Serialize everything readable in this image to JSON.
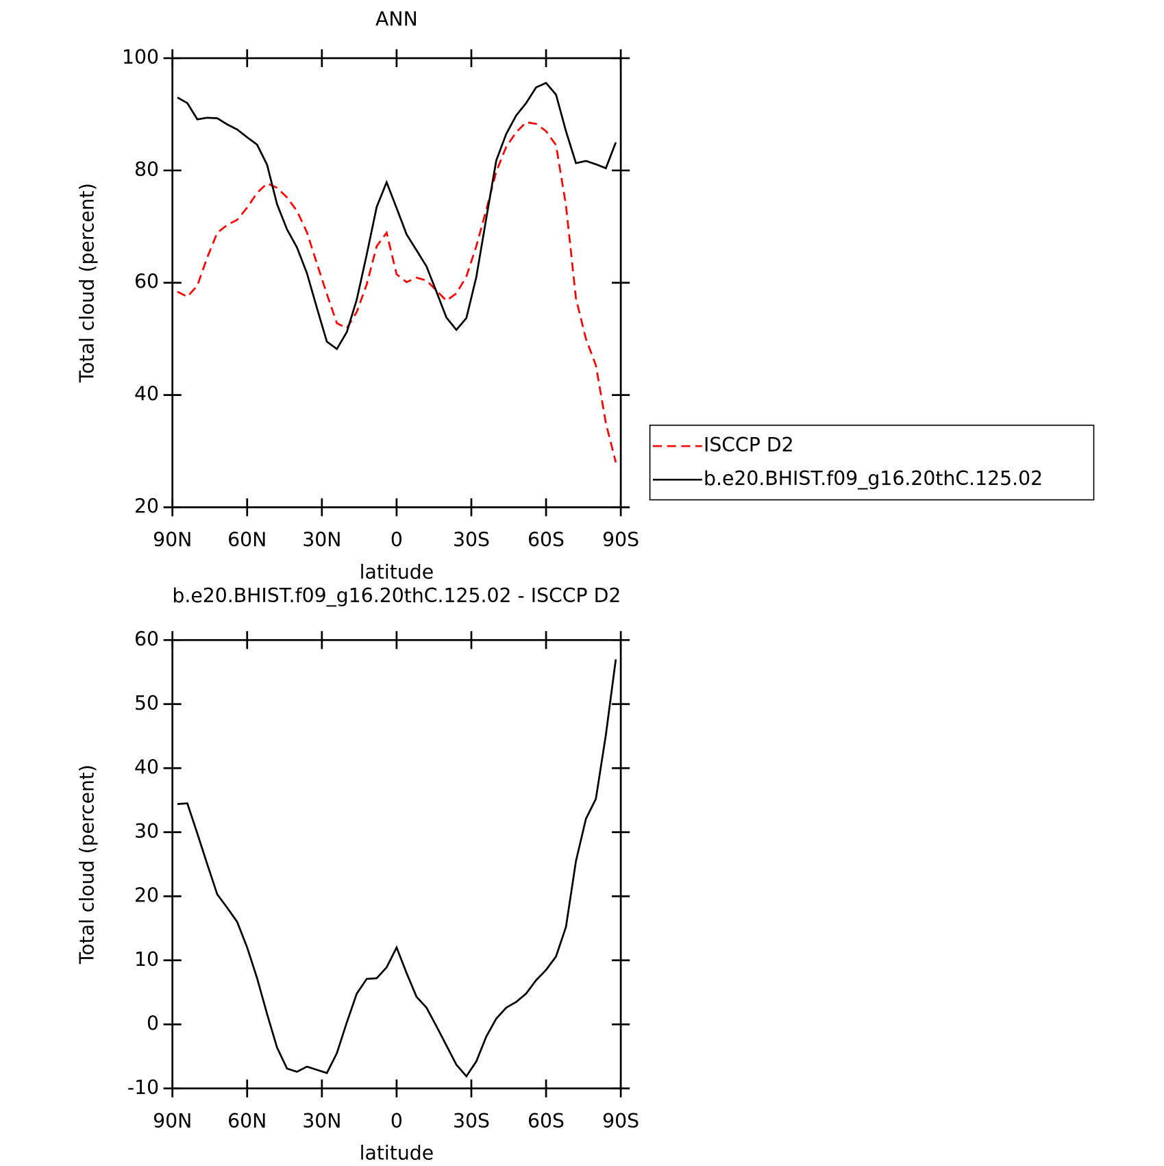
{
  "chart_data": [
    {
      "type": "line",
      "title": "ANN",
      "x_label": "latitude",
      "y_label": "Total cloud (percent)",
      "x": [
        88,
        84,
        80,
        76,
        72,
        68,
        64,
        60,
        56,
        52,
        48,
        44,
        40,
        36,
        32,
        28,
        24,
        20,
        16,
        12,
        8,
        4,
        0,
        -4,
        -8,
        -12,
        -16,
        -20,
        -24,
        -28,
        -32,
        -36,
        -40,
        -44,
        -48,
        -52,
        -56,
        -60,
        -64,
        -68,
        -72,
        -76,
        -80,
        -84,
        -88
      ],
      "xlim": [
        90,
        -90
      ],
      "xticks": [
        {
          "value": 90,
          "label": "90N"
        },
        {
          "value": 60,
          "label": "60N"
        },
        {
          "value": 30,
          "label": "30N"
        },
        0,
        {
          "value": -30,
          "label": "30S"
        },
        {
          "value": -60,
          "label": "60S"
        },
        {
          "value": -90,
          "label": "90S"
        }
      ],
      "ylim": [
        20,
        100
      ],
      "yticks": [
        20,
        40,
        60,
        80,
        100
      ],
      "legend": "right",
      "series": [
        {
          "name": "ISCCP D2",
          "color": "#ff0000",
          "dashed": true,
          "values": [
            58.4,
            57.5,
            59.5,
            64.5,
            68.9,
            70.3,
            71.2,
            73.4,
            76,
            77.7,
            76.9,
            75.2,
            72.8,
            69,
            63.4,
            58,
            52.8,
            51.9,
            54.8,
            59.7,
            66.5,
            68.9,
            61.5,
            60.1,
            60.9,
            60.4,
            58.6,
            56.8,
            58.1,
            61.1,
            66.5,
            73,
            79.8,
            84.2,
            86.8,
            88.6,
            88.3,
            87,
            84.5,
            73.8,
            57.2,
            50,
            45.3,
            35,
            28
          ]
        },
        {
          "name": "b.e20.BHIST.f09_g16.20thC.125.02",
          "color": "#000000",
          "dashed": false,
          "values": [
            93,
            92,
            89.1,
            89.4,
            89.3,
            88.2,
            87.3,
            85.9,
            84.6,
            81,
            74,
            69.5,
            66.3,
            61.7,
            55.5,
            49.5,
            48.2,
            51.2,
            57,
            65,
            73.5,
            77.9,
            73.3,
            68.6,
            65.8,
            62.9,
            58.4,
            53.8,
            51.6,
            53.7,
            61,
            71.5,
            81.8,
            86.5,
            89.8,
            92,
            94.8,
            95.6,
            93.5,
            87,
            81.3,
            81.7,
            81.1,
            80.4,
            85
          ]
        }
      ]
    },
    {
      "type": "line",
      "title": "b.e20.BHIST.f09_g16.20thC.125.02 - ISCCP D2",
      "x_label": "latitude",
      "y_label": "Total cloud (percent)",
      "x": [
        88,
        84,
        80,
        76,
        72,
        68,
        64,
        60,
        56,
        52,
        48,
        44,
        40,
        36,
        32,
        28,
        24,
        20,
        16,
        12,
        8,
        4,
        0,
        -4,
        -8,
        -12,
        -16,
        -20,
        -24,
        -28,
        -32,
        -36,
        -40,
        -44,
        -48,
        -52,
        -56,
        -60,
        -64,
        -68,
        -72,
        -76,
        -80,
        -84,
        -88
      ],
      "xlim": [
        90,
        -90
      ],
      "xticks": [
        {
          "value": 90,
          "label": "90N"
        },
        {
          "value": 60,
          "label": "60N"
        },
        {
          "value": 30,
          "label": "30N"
        },
        0,
        {
          "value": -30,
          "label": "30S"
        },
        {
          "value": -60,
          "label": "60S"
        },
        {
          "value": -90,
          "label": "90S"
        }
      ],
      "ylim": [
        -10,
        60
      ],
      "yticks": [
        -10,
        0,
        10,
        20,
        30,
        40,
        50,
        60
      ],
      "series": [
        {
          "color": "#000000",
          "dashed": false,
          "values": [
            34.4,
            34.5,
            29.8,
            25,
            20.3,
            18.2,
            16,
            12,
            7.2,
            1.6,
            -3.6,
            -6.9,
            -7.4,
            -6.6,
            -7.1,
            -7.6,
            -4.5,
            0.3,
            4.8,
            7.1,
            7.2,
            8.9,
            12,
            8,
            4.3,
            2.6,
            -0.3,
            -3.3,
            -6.3,
            -8.1,
            -5.8,
            -1.9,
            0.9,
            2.6,
            3.5,
            4.8,
            6.9,
            8.5,
            10.6,
            15.2,
            25.5,
            32.1,
            35.2,
            45.2,
            57
          ]
        }
      ]
    }
  ]
}
